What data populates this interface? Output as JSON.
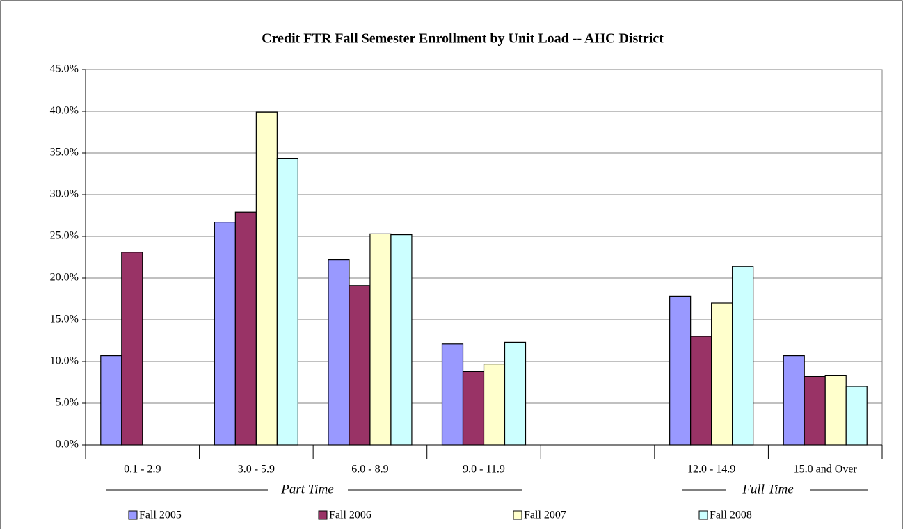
{
  "chart_data": {
    "type": "bar",
    "title": "Credit FTR Fall Semester Enrollment by Unit Load -- AHC District",
    "categories": [
      "0.1 - 2.9",
      "3.0 - 5.9",
      "6.0 - 8.9",
      "9.0 - 11.9",
      null,
      "12.0 - 14.9",
      "15.0 and Over"
    ],
    "series": [
      {
        "name": "Fall 2005",
        "color": "#9999ff",
        "values": [
          10.7,
          26.7,
          22.2,
          12.1,
          null,
          17.8,
          10.7
        ]
      },
      {
        "name": "Fall 2006",
        "color": "#993366",
        "values": [
          23.1,
          27.9,
          19.1,
          8.8,
          null,
          13.0,
          8.2
        ]
      },
      {
        "name": "Fall 2007",
        "color": "#ffffcc",
        "values": [
          null,
          39.9,
          25.3,
          9.7,
          null,
          17.0,
          8.3
        ]
      },
      {
        "name": "Fall 2008",
        "color": "#ccffff",
        "values": [
          null,
          34.3,
          25.2,
          12.3,
          null,
          21.4,
          7.0
        ]
      }
    ],
    "ylim": [
      0,
      45
    ],
    "yticks": [
      {
        "value": 0,
        "label": "0.0%"
      },
      {
        "value": 5,
        "label": "5.0%"
      },
      {
        "value": 10,
        "label": "10.0%"
      },
      {
        "value": 15,
        "label": "15.0%"
      },
      {
        "value": 20,
        "label": "20.0%"
      },
      {
        "value": 25,
        "label": "25.0%"
      },
      {
        "value": 30,
        "label": "30.0%"
      },
      {
        "value": 35,
        "label": "35.0%"
      },
      {
        "value": 40,
        "label": "40.0%"
      },
      {
        "value": 45,
        "label": "45.0%"
      }
    ],
    "grid": true,
    "annotations": [
      "Part Time",
      "Full Time"
    ]
  }
}
